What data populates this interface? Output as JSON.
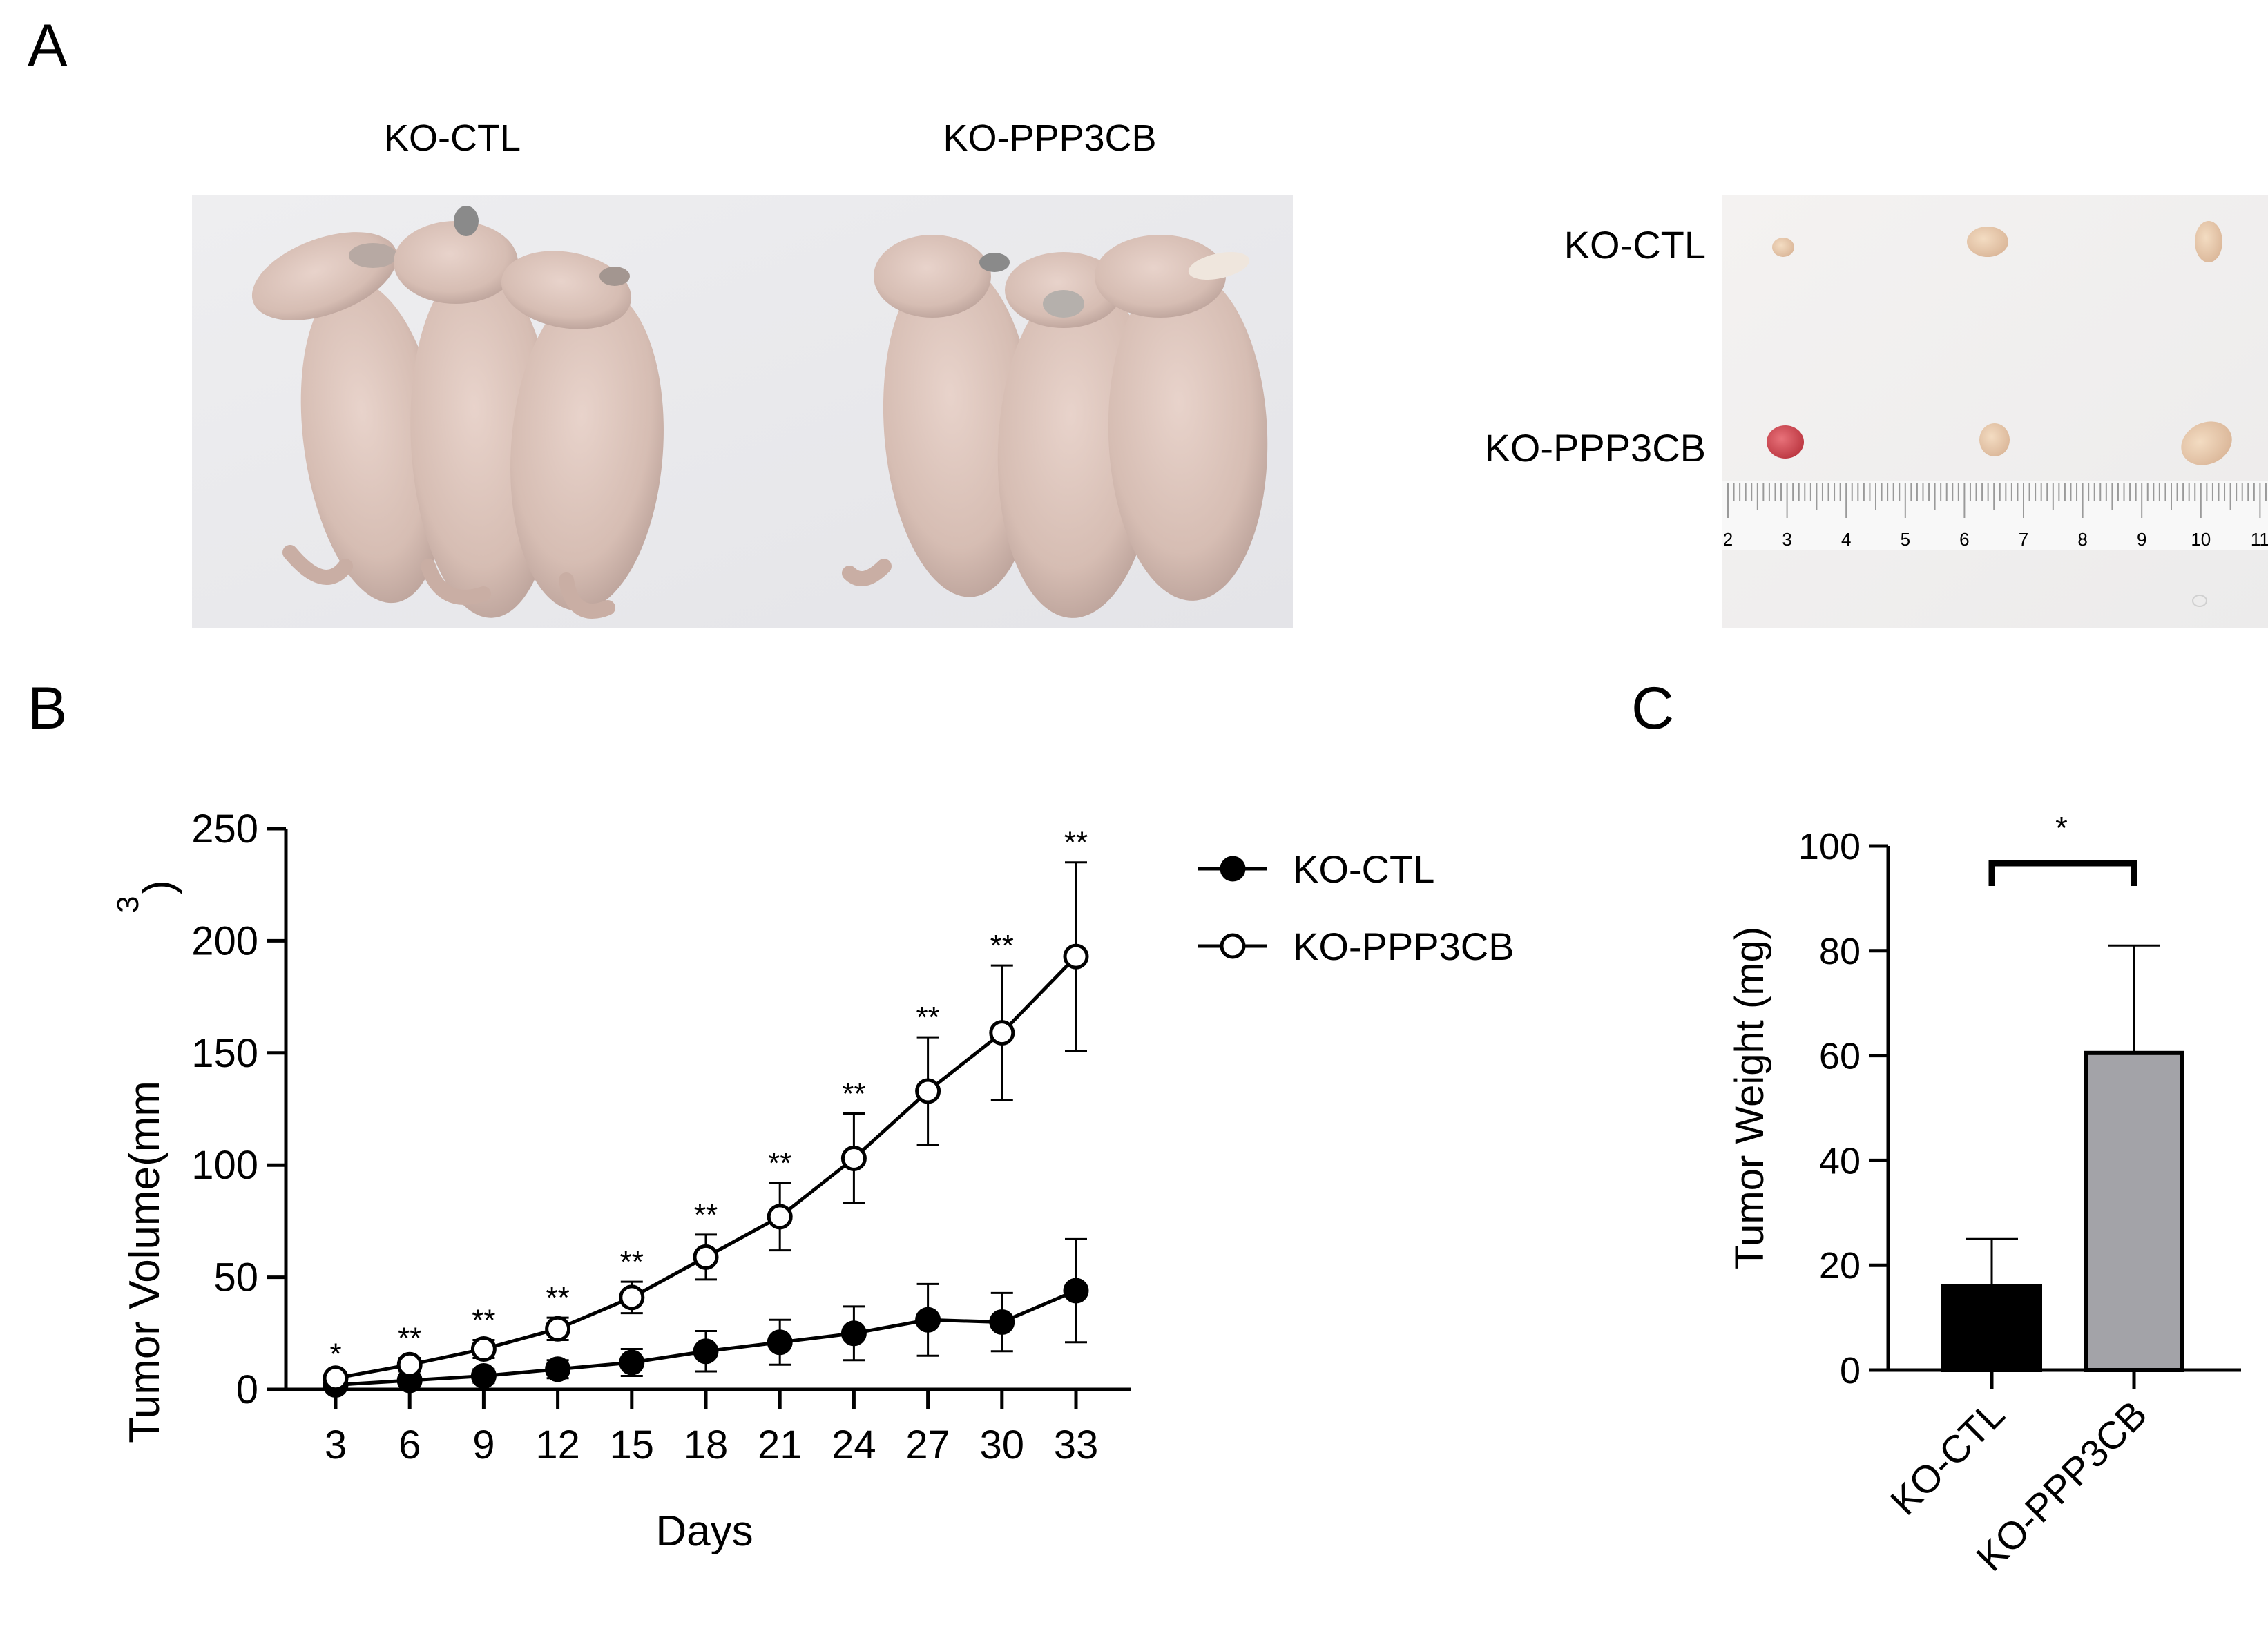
{
  "panels": {
    "a": "A",
    "b": "B",
    "c": "C"
  },
  "photo_panel": {
    "mouse_group_labels": [
      "KO-CTL",
      "KO-PPP3CB"
    ],
    "tumor_row_labels": [
      "KO-CTL",
      "KO-PPP3CB"
    ],
    "ruler_numbers": [
      "2",
      "3",
      "4",
      "5",
      "6",
      "7",
      "8",
      "9",
      "10",
      "11"
    ]
  },
  "chart_data": [
    {
      "type": "line",
      "xlabel": "Days",
      "ylabel_main": "Tumor Volume(mm",
      "ylabel_sup": "3",
      "ylabel_close": ")",
      "x": [
        3,
        6,
        9,
        12,
        15,
        18,
        21,
        24,
        27,
        30,
        33
      ],
      "ylim": [
        0,
        250
      ],
      "yticks": [
        0,
        50,
        100,
        150,
        200,
        250
      ],
      "legend_position": "right",
      "series": [
        {
          "name": "KO-CTL",
          "marker": "filled-circle",
          "values": [
            2,
            4,
            6,
            9,
            12,
            17,
            21,
            25,
            31,
            30,
            44
          ],
          "errors": [
            1,
            2,
            3,
            4,
            6,
            9,
            10,
            12,
            16,
            13,
            23
          ]
        },
        {
          "name": "KO-PPP3CB",
          "marker": "open-circle",
          "values": [
            5,
            11,
            18,
            27,
            41,
            59,
            77,
            103,
            133,
            159,
            193
          ],
          "errors": [
            2,
            3,
            4,
            5,
            7,
            10,
            15,
            20,
            24,
            30,
            42
          ]
        }
      ],
      "significance": [
        "*",
        "**",
        "**",
        "**",
        "**",
        "**",
        "**",
        "**",
        "**",
        "**",
        "**"
      ]
    },
    {
      "type": "bar",
      "categories": [
        "KO-CTL",
        "KO-PPP3CB"
      ],
      "values": [
        16,
        60.5
      ],
      "errors": [
        9,
        20.5
      ],
      "ylabel": "Tumor Weight (mg)",
      "ylim": [
        0,
        100
      ],
      "yticks": [
        0,
        20,
        40,
        60,
        80,
        100
      ],
      "bar_colors": [
        "#000000",
        "#a3a3a8"
      ],
      "significance": "*"
    }
  ]
}
